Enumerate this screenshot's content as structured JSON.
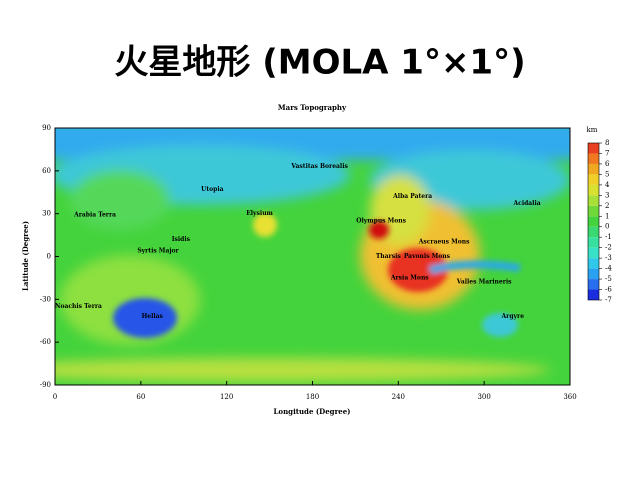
{
  "header": {
    "title": "火星地形 (MOLA 1°×1°)"
  },
  "map": {
    "title": "Mars Topography",
    "xlabel": "Longitude (Degree)",
    "ylabel": "Latitude (Degree)",
    "xlim": [
      0,
      360
    ],
    "xticks": [
      0,
      60,
      120,
      180,
      240,
      300,
      360
    ],
    "ylim": [
      -90,
      90
    ],
    "yticks": [
      -90,
      -60,
      -30,
      0,
      30,
      60,
      90
    ],
    "colorbar": {
      "unit": "km",
      "lim": [
        -7,
        8
      ],
      "ticks": [
        -7,
        -6,
        -5,
        -4,
        -3,
        -2,
        -1,
        0,
        1,
        2,
        3,
        4,
        5,
        6,
        7,
        8
      ]
    },
    "labels": [
      "Vastitas Borealis",
      "Utopia",
      "Alba Patera",
      "Acidalia",
      "Arabia Terra",
      "Elysium",
      "Olympus Mons",
      "Isidis",
      "Syrtis Major",
      "Ascraeus Mons",
      "Tharsis",
      "Pavonis Mons",
      "Arsia Mons",
      "Valles Marineris",
      "Noachis Terra",
      "Hellas",
      "Argyre"
    ]
  }
}
